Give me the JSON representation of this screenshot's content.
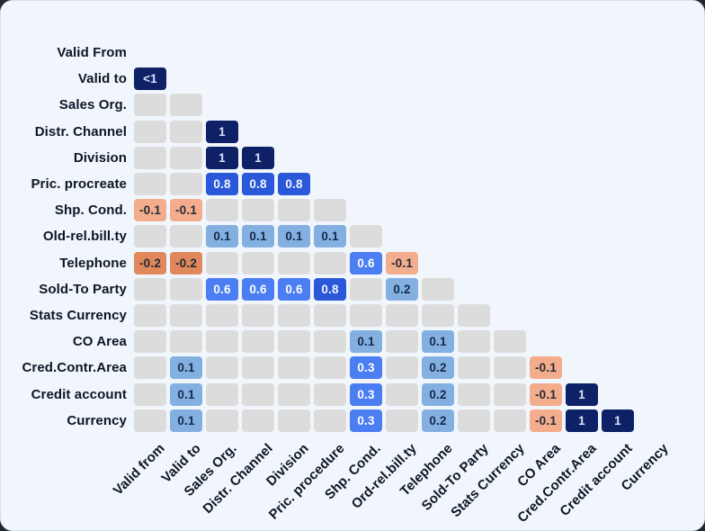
{
  "page": {
    "background_color": "#f1f6fd",
    "card_border_color": "#d7e0ec",
    "label_text_color": "#0e1524"
  },
  "chart_data": {
    "type": "heatmap",
    "subtype": "lower-triangular-correlation-matrix",
    "title": "",
    "legend": "none",
    "rows": [
      "Valid From",
      "Valid to",
      "Sales Org.",
      "Distr. Channel",
      "Division",
      "Pric. procreate",
      "Shp. Cond.",
      "Old-rel.bill.ty",
      "Telephone",
      "Sold-To Party",
      "Stats Currency",
      "CO Area",
      "Cred.Contr.Area",
      "Credit account",
      "Currency"
    ],
    "columns": [
      "Valid from",
      "Valid to",
      "Sales Org.",
      "Distr. Channel",
      "Division",
      "Pric. procedure",
      "Shp. Cond.",
      "Ord-rel.bill.ty",
      "Telephone",
      "Sold-To Party",
      "Stats Currency",
      "CO Area",
      "Cred.Contr.Area",
      "Credit account",
      "Currency"
    ],
    "cells": [
      [],
      [
        "<1"
      ],
      [
        "",
        ""
      ],
      [
        "",
        "",
        "1"
      ],
      [
        "",
        "",
        "1",
        "1"
      ],
      [
        "",
        "",
        "0.8",
        "0.8",
        "0.8"
      ],
      [
        "-0.1",
        "-0.1",
        "",
        "",
        "",
        ""
      ],
      [
        "",
        "",
        "0.1",
        "0.1",
        "0.1",
        "0.1",
        ""
      ],
      [
        "-0.2",
        "-0.2",
        "",
        "",
        "",
        "",
        "0.6",
        "-0.1"
      ],
      [
        "",
        "",
        "0.6",
        "0.6",
        "0.6",
        "0.8",
        "",
        "0.2",
        ""
      ],
      [
        "",
        "",
        "",
        "",
        "",
        "",
        "",
        "",
        "",
        ""
      ],
      [
        "",
        "",
        "",
        "",
        "",
        "",
        "0.1",
        "",
        "0.1",
        "",
        ""
      ],
      [
        "",
        "0.1",
        "",
        "",
        "",
        "",
        "0.3",
        "",
        "0.2",
        "",
        "",
        "-0.1"
      ],
      [
        "",
        "0.1",
        "",
        "",
        "",
        "",
        "0.3",
        "",
        "0.2",
        "",
        "",
        "-0.1",
        "1"
      ],
      [
        "",
        "0.1",
        "",
        "",
        "",
        "",
        "0.3",
        "",
        "0.2",
        "",
        "",
        "-0.1",
        "1",
        "1"
      ]
    ],
    "value_colors": {
      "<1": {
        "bg": "#0e2167",
        "fg": "#d9e4f8"
      },
      "1": {
        "bg": "#0e2167",
        "fg": "#d9e4f8"
      },
      "0.8": {
        "bg": "#2b57d9",
        "fg": "#f4f7ff"
      },
      "0.6": {
        "bg": "#4c7ef3",
        "fg": "#fdfeff"
      },
      "0.3": {
        "bg": "#4c7ef3",
        "fg": "#fdfeff"
      },
      "0.2": {
        "bg": "#84b0e1",
        "fg": "#16294d"
      },
      "0.1": {
        "bg": "#84b0e1",
        "fg": "#16294d"
      },
      "-0.1": {
        "bg": "#f3ad8c",
        "fg": "#242b36"
      },
      "-0.2": {
        "bg": "#e0885c",
        "fg": "#242b36"
      },
      "": {
        "bg": "#dcdcdc",
        "fg": "#dcdcdc"
      }
    }
  }
}
